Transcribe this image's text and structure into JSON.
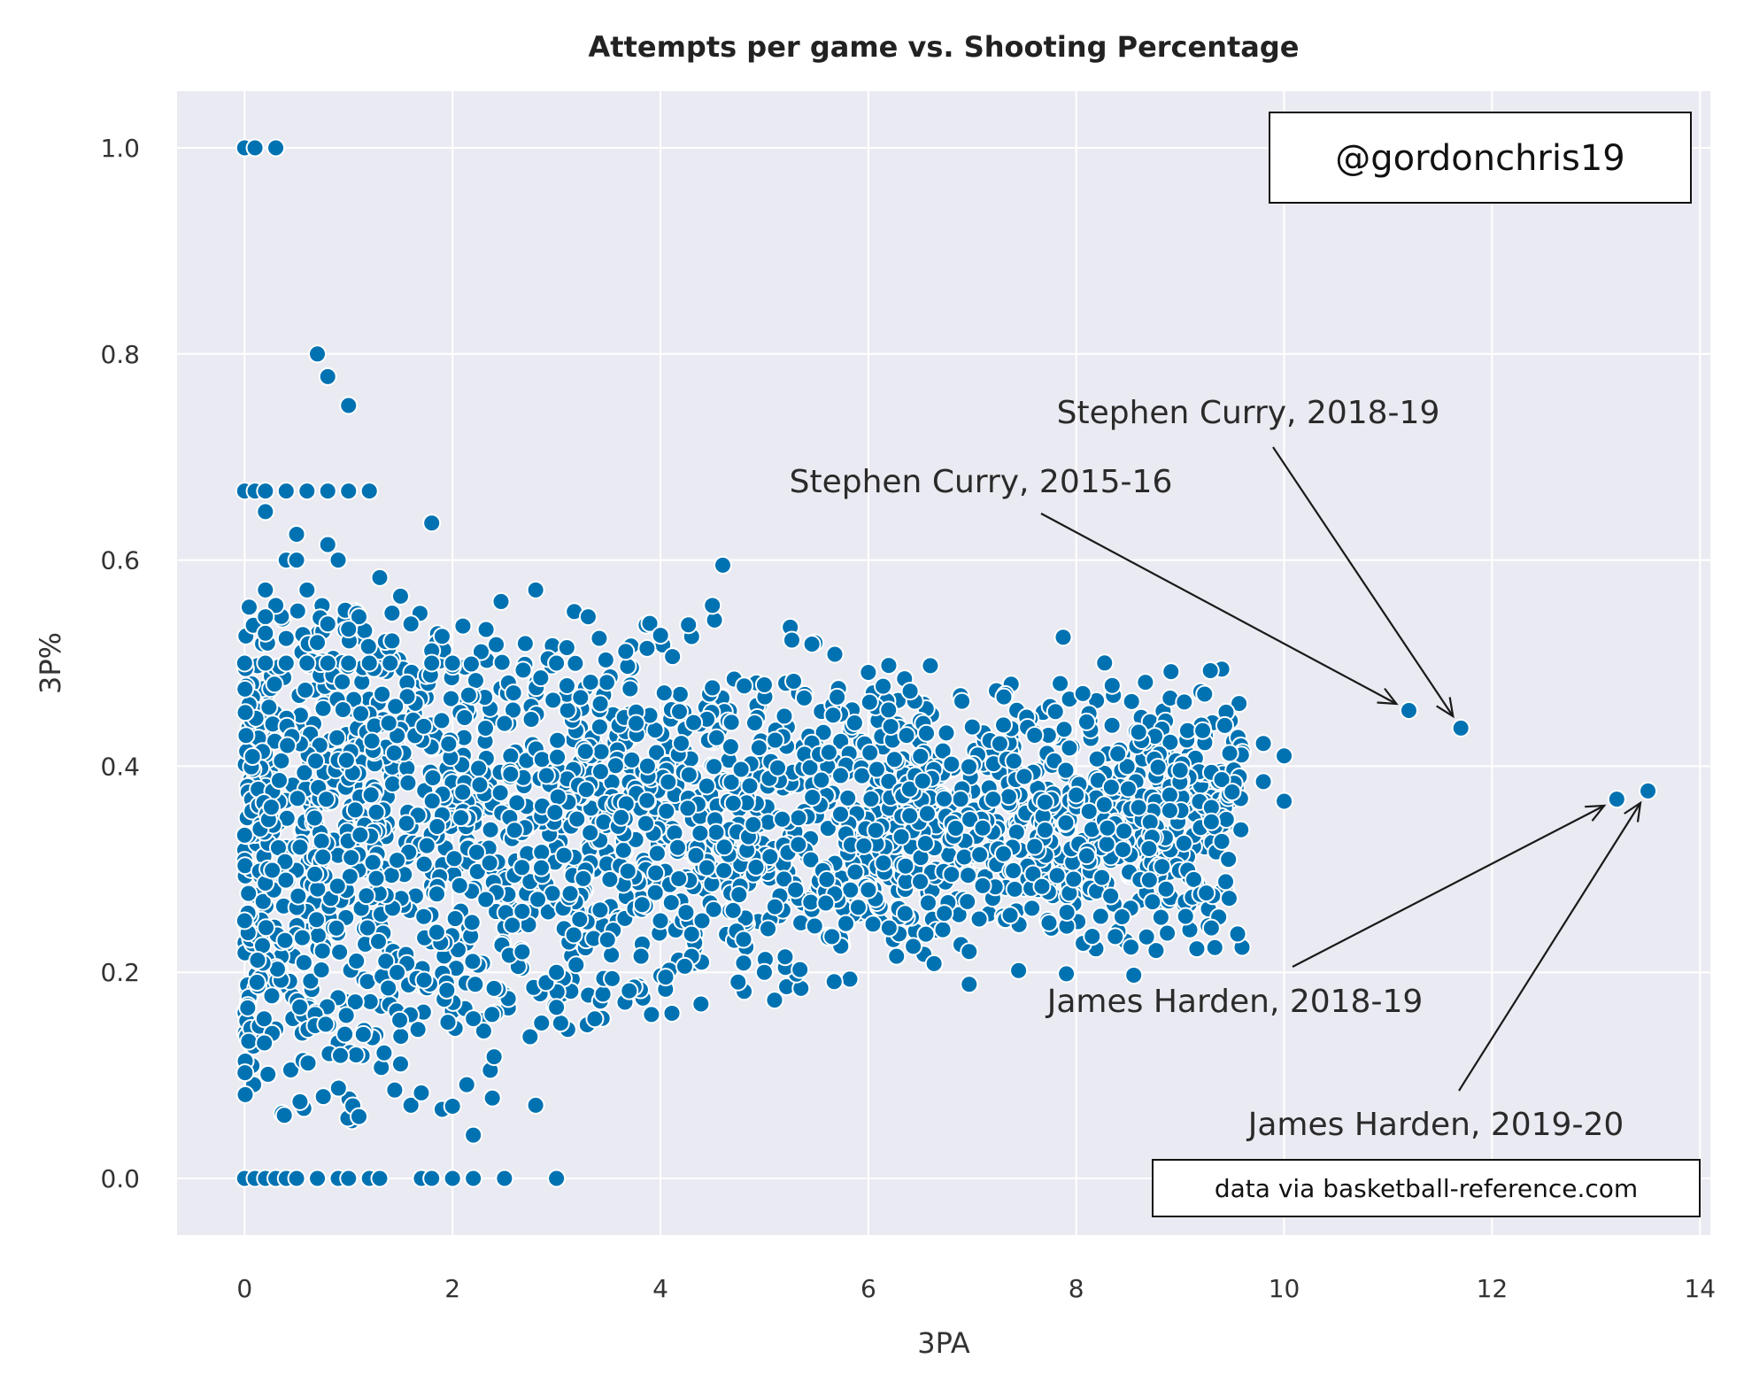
{
  "chart_data": {
    "type": "scatter",
    "title": "Attempts per game vs. Shooting Percentage",
    "xlabel": "3PA",
    "ylabel": "3P%",
    "xlim": [
      -0.65,
      14.1
    ],
    "ylim": [
      -0.055,
      1.055
    ],
    "x_ticks": [
      "0",
      "2",
      "4",
      "6",
      "8",
      "10",
      "12",
      "14"
    ],
    "y_ticks": [
      "0.0",
      "0.2",
      "0.4",
      "0.6",
      "0.8",
      "1.0"
    ],
    "grid": true,
    "marker_color": "#0072b2",
    "background_color": "#eaeaf2",
    "handle_label": "@gordonchris19",
    "source_label": "data via basketball-reference.com",
    "annotations": [
      {
        "text": "Stephen Curry, 2018-19",
        "point": [
          11.7,
          0.437
        ]
      },
      {
        "text": "Stephen Curry, 2015-16",
        "point": [
          11.2,
          0.454
        ]
      },
      {
        "text": "James Harden, 2018-19",
        "point": [
          13.2,
          0.368
        ]
      },
      {
        "text": "James Harden, 2019-20",
        "point": [
          13.5,
          0.376
        ]
      }
    ],
    "points": [
      [
        0.0,
        1.0
      ],
      [
        0.1,
        1.0
      ],
      [
        0.3,
        1.0
      ],
      [
        0.7,
        0.8
      ],
      [
        0.8,
        0.778
      ],
      [
        1.0,
        0.75
      ],
      [
        0.0,
        0.667
      ],
      [
        0.1,
        0.667
      ],
      [
        0.2,
        0.667
      ],
      [
        0.4,
        0.667
      ],
      [
        0.6,
        0.667
      ],
      [
        0.8,
        0.667
      ],
      [
        1.0,
        0.667
      ],
      [
        1.2,
        0.667
      ],
      [
        0.2,
        0.647
      ],
      [
        1.8,
        0.636
      ],
      [
        0.5,
        0.625
      ],
      [
        0.8,
        0.615
      ],
      [
        0.4,
        0.6
      ],
      [
        0.5,
        0.6
      ],
      [
        0.9,
        0.6
      ],
      [
        4.6,
        0.595
      ],
      [
        1.3,
        0.583
      ],
      [
        0.2,
        0.571
      ],
      [
        0.6,
        0.571
      ],
      [
        2.8,
        0.571
      ],
      [
        1.5,
        0.565
      ],
      [
        4.5,
        0.556
      ],
      [
        0.3,
        0.556
      ],
      [
        0.2,
        0.545
      ],
      [
        1.1,
        0.545
      ],
      [
        1.6,
        0.538
      ],
      [
        2.1,
        0.536
      ],
      [
        0.8,
        0.538
      ],
      [
        1.0,
        0.533
      ],
      [
        0.2,
        0.529
      ],
      [
        0.4,
        0.524
      ],
      [
        1.9,
        0.526
      ],
      [
        0.7,
        0.52
      ],
      [
        2.7,
        0.519
      ],
      [
        3.1,
        0.515
      ],
      [
        1.8,
        0.512
      ],
      [
        0.0,
        0.5
      ],
      [
        0.2,
        0.5
      ],
      [
        0.4,
        0.5
      ],
      [
        0.6,
        0.5
      ],
      [
        0.8,
        0.5
      ],
      [
        1.0,
        0.5
      ],
      [
        1.2,
        0.5
      ],
      [
        1.4,
        0.5
      ],
      [
        1.8,
        0.5
      ],
      [
        2.0,
        0.5
      ],
      [
        3.0,
        0.5
      ],
      [
        6.0,
        0.491
      ],
      [
        5.0,
        0.479
      ],
      [
        4.5,
        0.476
      ],
      [
        5.7,
        0.467
      ],
      [
        6.9,
        0.463
      ],
      [
        7.8,
        0.453
      ],
      [
        8.1,
        0.443
      ],
      [
        7.3,
        0.44
      ],
      [
        7.0,
        0.438
      ],
      [
        8.6,
        0.433
      ],
      [
        7.6,
        0.43
      ],
      [
        9.8,
        0.422
      ],
      [
        8.4,
        0.412
      ],
      [
        10.0,
        0.41
      ],
      [
        8.2,
        0.407
      ],
      [
        7.4,
        0.405
      ],
      [
        6.8,
        0.402
      ],
      [
        9.0,
        0.396
      ],
      [
        9.3,
        0.394
      ],
      [
        7.9,
        0.396
      ],
      [
        7.5,
        0.39
      ],
      [
        9.4,
        0.387
      ],
      [
        9.8,
        0.385
      ],
      [
        8.9,
        0.372
      ],
      [
        9.5,
        0.375
      ],
      [
        10.0,
        0.366
      ],
      [
        9.3,
        0.36
      ],
      [
        8.5,
        0.378
      ],
      [
        8.0,
        0.372
      ],
      [
        7.2,
        0.368
      ],
      [
        7.7,
        0.365
      ],
      [
        8.6,
        0.36
      ],
      [
        8.9,
        0.357
      ],
      [
        9.3,
        0.346
      ],
      [
        7.9,
        0.345
      ],
      [
        8.3,
        0.34
      ],
      [
        7.1,
        0.34
      ],
      [
        7.7,
        0.338
      ],
      [
        9.4,
        0.327
      ],
      [
        7.3,
        0.315
      ],
      [
        7.6,
        0.322
      ],
      [
        8.7,
        0.32
      ],
      [
        8.1,
        0.313
      ],
      [
        7.1,
        0.284
      ],
      [
        9.3,
        0.243
      ],
      [
        6.2,
        0.243
      ],
      [
        6.5,
        0.288
      ],
      [
        6.8,
        0.295
      ],
      [
        6.0,
        0.28
      ],
      [
        5.3,
        0.28
      ],
      [
        5.6,
        0.29
      ],
      [
        5.2,
        0.215
      ],
      [
        5.0,
        0.2
      ],
      [
        4.8,
        0.209
      ],
      [
        4.8,
        0.232
      ],
      [
        4.7,
        0.26
      ],
      [
        4.4,
        0.25
      ],
      [
        4.3,
        0.237
      ],
      [
        4.0,
        0.25
      ],
      [
        3.7,
        0.182
      ],
      [
        3.0,
        0.166
      ],
      [
        2.9,
        0.19
      ],
      [
        3.0,
        0.2
      ],
      [
        2.8,
        0.071
      ],
      [
        2.4,
        0.118
      ],
      [
        2.3,
        0.143
      ],
      [
        2.2,
        0.042
      ],
      [
        2.2,
        0.155
      ],
      [
        1.9,
        0.067
      ],
      [
        2.0,
        0.07
      ],
      [
        1.6,
        0.071
      ],
      [
        1.7,
        0.083
      ],
      [
        1.1,
        0.06
      ],
      [
        1.5,
        0.111
      ],
      [
        0.0,
        0.333
      ],
      [
        0.0,
        0.25
      ],
      [
        0.0,
        0.0
      ],
      [
        0.1,
        0.0
      ],
      [
        0.2,
        0.0
      ],
      [
        0.3,
        0.0
      ],
      [
        0.4,
        0.0
      ],
      [
        0.5,
        0.0
      ],
      [
        0.7,
        0.0
      ],
      [
        0.9,
        0.0
      ],
      [
        1.0,
        0.0
      ],
      [
        1.2,
        0.0
      ],
      [
        1.3,
        0.0
      ],
      [
        1.7,
        0.0
      ],
      [
        1.8,
        0.0
      ],
      [
        2.0,
        0.0
      ],
      [
        2.2,
        0.0
      ],
      [
        2.5,
        0.0
      ],
      [
        3.0,
        0.0
      ],
      [
        11.2,
        0.454
      ],
      [
        11.7,
        0.437
      ],
      [
        13.2,
        0.368
      ],
      [
        13.5,
        0.376
      ]
    ]
  }
}
